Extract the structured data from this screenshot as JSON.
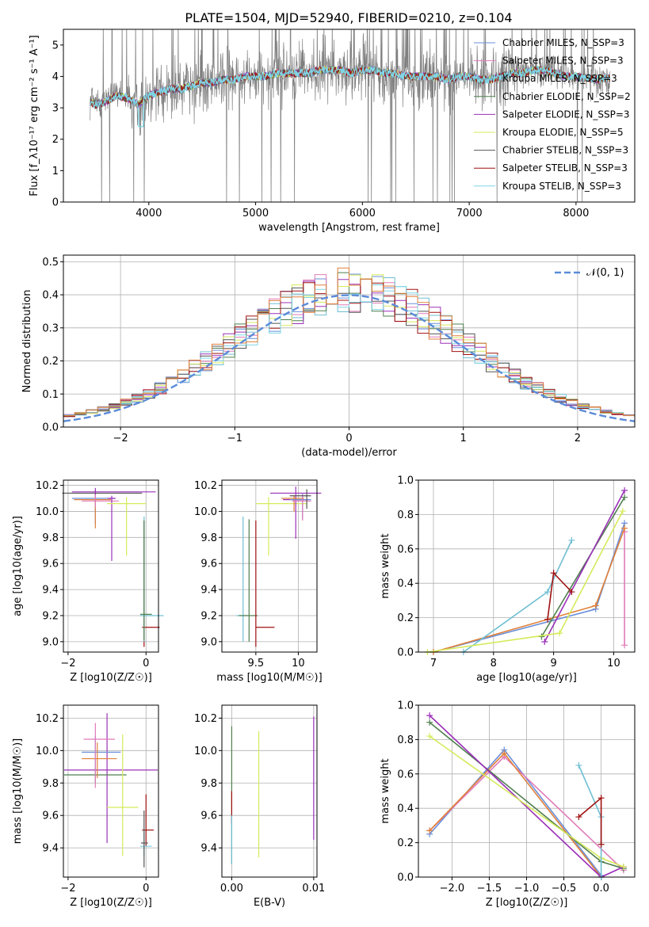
{
  "figure": {
    "title": "PLATE=1504, MJD=52940, FIBERID=0210, z=0.104",
    "colors": [
      "#6a8fd9",
      "#e07ab8",
      "#6fbfd3",
      "#4f7f4f",
      "#9b30b8",
      "#d6ea5b",
      "#555555",
      "#a01010",
      "#7fd6e6"
    ],
    "orange": "#e0803a"
  },
  "chart_data": [
    {
      "id": "spectrum",
      "type": "line",
      "xlabel": "wavelength [Angstrom, rest frame]",
      "ylabel": "Flux [f_λ 10^-17 erg cm^-2 s^-1 A^-1]",
      "xlim": [
        3200,
        8550
      ],
      "ylim": [
        0,
        5.5
      ],
      "xticks": [
        4000,
        5000,
        6000,
        7000,
        8000
      ],
      "yticks": [
        0,
        1,
        2,
        3,
        4,
        5
      ],
      "grid": false,
      "legend_position": "top-right",
      "series": [
        {
          "name": "Chabrier MILES, N_SSP=3",
          "color": "#6a8fd9"
        },
        {
          "name": "Salpeter MILES, N_SSP=3",
          "color": "#e07ab8"
        },
        {
          "name": "Kroupa MILES, N_SSP=3",
          "color": "#6fbfd3"
        },
        {
          "name": "Chabrier ELODIE, N_SSP=2",
          "color": "#4f7f4f"
        },
        {
          "name": "Salpeter ELODIE, N_SSP=3",
          "color": "#9b30b8"
        },
        {
          "name": "Kroupa ELODIE, N_SSP=5",
          "color": "#d6ea5b"
        },
        {
          "name": "Chabrier STELIB, N_SSP=3",
          "color": "#555555"
        },
        {
          "name": "Salpeter STELIB, N_SSP=3",
          "color": "#a01010"
        },
        {
          "name": "Kroupa STELIB, N_SSP=3",
          "color": "#7fd6e6"
        }
      ],
      "x": [
        3450,
        3500,
        3600,
        3700,
        3800,
        3900,
        4000,
        4100,
        4200,
        4300,
        4400,
        4500,
        4600,
        4700,
        4800,
        4900,
        5000,
        5100,
        5200,
        5300,
        5400,
        5500,
        5600,
        5700,
        5800,
        5900,
        6000,
        6100,
        6200,
        6300,
        6400,
        6500,
        6600,
        6700,
        6800,
        6900,
        7000,
        7100,
        7200,
        7300,
        7400,
        7500,
        7600,
        7700,
        7800,
        7900,
        8000,
        8100,
        8200,
        8300
      ],
      "model": [
        3.2,
        3.1,
        3.2,
        3.4,
        3.3,
        3.1,
        3.4,
        3.5,
        3.6,
        3.6,
        3.7,
        3.8,
        3.8,
        3.9,
        3.9,
        4.0,
        4.0,
        4.0,
        4.1,
        4.1,
        4.1,
        4.1,
        4.2,
        4.2,
        4.2,
        4.1,
        4.2,
        4.2,
        4.1,
        4.1,
        4.0,
        4.0,
        4.0,
        4.0,
        3.9,
        4.0,
        4.0,
        3.9,
        3.9,
        4.0,
        4.1,
        4.1,
        4.2,
        4.2,
        4.1,
        4.0,
        4.0,
        3.95,
        3.9,
        3.95
      ],
      "data_spread": 1.3
    },
    {
      "id": "residuals",
      "type": "line",
      "xlabel": "(data-model)/error",
      "ylabel": "Normed distribution",
      "xlim": [
        -2.5,
        2.5
      ],
      "ylim": [
        0,
        0.52
      ],
      "xticks": [
        -2,
        -1,
        0,
        1,
        2
      ],
      "yticks": [
        0.0,
        0.1,
        0.2,
        0.3,
        0.4,
        0.5
      ],
      "grid": true,
      "legend_position": "top-right",
      "legend": "𝒩(0, 1)",
      "bin_width": 0.1
    },
    {
      "id": "age-vs-z",
      "type": "scatter",
      "xlabel": "Z [log10(Z/Z☉)]",
      "ylabel": "age  [log10(age/yr)]",
      "xlim": [
        -2.12,
        0.32
      ],
      "ylim": [
        8.92,
        10.24
      ],
      "xticks": [
        -2,
        0
      ],
      "yticks": [
        9.0,
        9.2,
        9.4,
        9.6,
        9.8,
        10.0,
        10.2
      ],
      "grid": true,
      "points": [
        {
          "x": -1.3,
          "y": 10.14,
          "xerr": [
            0.85,
            1.2
          ],
          "yerr": [
            0.02,
            0.02
          ],
          "c": 6
        },
        {
          "x": -1.3,
          "y": 10.15,
          "xerr": [
            0.6,
            1.55
          ],
          "yerr": [
            0.03,
            0.03
          ],
          "c": 4
        },
        {
          "x": -1.3,
          "y": 10.1,
          "xerr": [
            0.6,
            0.5
          ],
          "yerr": [
            0.2,
            0.02
          ],
          "c": 0
        },
        {
          "x": -1.3,
          "y": 10.09,
          "xerr": [
            0.55,
            0.4
          ],
          "yerr": [
            0.22,
            0.02
          ],
          "c": 9
        },
        {
          "x": -1.3,
          "y": 10.08,
          "xerr": [
            0.35,
            0.6
          ],
          "yerr": [
            0.05,
            0.05
          ],
          "c": 1
        },
        {
          "x": -0.88,
          "y": 10.1,
          "xerr": [
            0.1,
            0.1
          ],
          "yerr": [
            0.48,
            0.02
          ],
          "c": 4
        },
        {
          "x": -0.5,
          "y": 10.06,
          "xerr": [
            0.5,
            0.5
          ],
          "yerr": [
            0.4,
            0.05
          ],
          "c": 5
        },
        {
          "x": -0.05,
          "y": 9.11,
          "xerr": [
            0.05,
            0.4
          ],
          "yerr": [
            0.15,
            0.82
          ],
          "c": 7
        },
        {
          "x": -0.05,
          "y": 9.2,
          "xerr": [
            0.1,
            0.5
          ],
          "yerr": [
            0.2,
            0.76
          ],
          "c": 2
        },
        {
          "x": -0.05,
          "y": 9.21,
          "xerr": [
            0.1,
            0.2
          ],
          "yerr": [
            0.2,
            0.72
          ],
          "c": 3
        }
      ]
    },
    {
      "id": "age-vs-mass",
      "type": "scatter",
      "xlabel": "mass [log10(M/M☉)]",
      "ylabel": "",
      "xlim": [
        9.1,
        10.22
      ],
      "ylim": [
        8.92,
        10.24
      ],
      "xticks": [
        9.5,
        10.0
      ],
      "yticks": [
        9.0,
        9.2,
        9.4,
        9.6,
        9.8,
        10.0,
        10.2
      ],
      "grid": true,
      "points": [
        {
          "x": 9.35,
          "y": 9.2,
          "xerr": [
            0.08,
            0.05
          ],
          "yerr": [
            0.2,
            0.76
          ],
          "c": 2
        },
        {
          "x": 9.42,
          "y": 9.2,
          "xerr": [
            0.12,
            0.1
          ],
          "yerr": [
            0.2,
            0.74
          ],
          "c": 3
        },
        {
          "x": 9.5,
          "y": 9.11,
          "xerr": [
            0.0,
            0.22
          ],
          "yerr": [
            0.15,
            0.82
          ],
          "c": 7
        },
        {
          "x": 9.65,
          "y": 10.06,
          "xerr": [
            0.15,
            0.45
          ],
          "yerr": [
            0.4,
            0.05
          ],
          "c": 5
        },
        {
          "x": 9.97,
          "y": 10.09,
          "xerr": [
            0.15,
            0.1
          ],
          "yerr": [
            0.3,
            0.02
          ],
          "c": 4
        },
        {
          "x": 9.97,
          "y": 10.14,
          "xerr": [
            0.3,
            0.3
          ],
          "yerr": [
            0.05,
            0.05
          ],
          "c": 4
        },
        {
          "x": 9.95,
          "y": 10.1,
          "xerr": [
            0.15,
            0.12
          ],
          "yerr": [
            0.1,
            0.02
          ],
          "c": 9
        },
        {
          "x": 10.05,
          "y": 10.09,
          "xerr": [
            0.15,
            0.1
          ],
          "yerr": [
            0.15,
            0.05
          ],
          "c": 0
        },
        {
          "x": 10.05,
          "y": 10.08,
          "xerr": [
            0.12,
            0.1
          ],
          "yerr": [
            0.15,
            0.05
          ],
          "c": 1
        },
        {
          "x": 10.1,
          "y": 10.12,
          "xerr": [
            0.2,
            0.05
          ],
          "yerr": [
            0.1,
            0.05
          ],
          "c": 6
        }
      ]
    },
    {
      "id": "weight-vs-age",
      "type": "line",
      "xlabel": "age  [log10(age/yr)]",
      "ylabel": "mass weight",
      "xlim": [
        6.75,
        10.35
      ],
      "ylim": [
        0,
        1.0
      ],
      "xticks": [
        7,
        8,
        9,
        10
      ],
      "yticks": [
        0.0,
        0.2,
        0.4,
        0.6,
        0.8,
        1.0
      ],
      "grid": true,
      "series": [
        {
          "c": 0,
          "x": [
            7.0,
            9.7,
            10.18
          ],
          "y": [
            0.0,
            0.25,
            0.75
          ]
        },
        {
          "c": 1,
          "x": [
            10.18,
            10.18
          ],
          "y": [
            0.04,
            0.7
          ]
        },
        {
          "c": 9,
          "x": [
            7.0,
            9.7,
            10.18
          ],
          "y": [
            0.0,
            0.27,
            0.72
          ]
        },
        {
          "c": 2,
          "x": [
            7.5,
            8.9,
            9.3
          ],
          "y": [
            0.0,
            0.35,
            0.65
          ]
        },
        {
          "c": 3,
          "x": [
            8.8,
            10.18
          ],
          "y": [
            0.09,
            0.9
          ]
        },
        {
          "c": 4,
          "x": [
            8.85,
            10.18
          ],
          "y": [
            0.06,
            0.94
          ]
        },
        {
          "c": 5,
          "x": [
            6.9,
            9.1,
            10.15
          ],
          "y": [
            0.0,
            0.11,
            0.82
          ]
        },
        {
          "c": 7,
          "x": [
            8.9,
            9.0,
            9.3
          ],
          "y": [
            0.19,
            0.46,
            0.35
          ]
        }
      ]
    },
    {
      "id": "mass-vs-z",
      "type": "scatter",
      "xlabel": "Z [log10(Z/Z☉)]",
      "ylabel": "mass [log10(M/M☉)]",
      "xlim": [
        -2.12,
        0.32
      ],
      "ylim": [
        9.22,
        10.28
      ],
      "xticks": [
        -2,
        0
      ],
      "yticks": [
        9.4,
        9.6,
        9.8,
        10.0,
        10.2
      ],
      "grid": true,
      "points": [
        {
          "x": -1.0,
          "y": 9.88,
          "xerr": [
            1.1,
            1.3
          ],
          "yerr": [
            0.45,
            0.35
          ],
          "c": 4
        },
        {
          "x": -1.3,
          "y": 9.85,
          "xerr": [
            0.8,
            0.8
          ],
          "yerr": [
            0.05,
            0.05
          ],
          "c": 3
        },
        {
          "x": -1.3,
          "y": 9.99,
          "xerr": [
            0.35,
            0.65
          ],
          "yerr": [
            0.1,
            0.1
          ],
          "c": 0
        },
        {
          "x": -1.25,
          "y": 9.95,
          "xerr": [
            0.4,
            0.5
          ],
          "yerr": [
            0.12,
            0.1
          ],
          "c": 9
        },
        {
          "x": -1.3,
          "y": 10.07,
          "xerr": [
            0.3,
            0.5
          ],
          "yerr": [
            0.3,
            0.1
          ],
          "c": 1
        },
        {
          "x": -0.6,
          "y": 9.65,
          "xerr": [
            0.4,
            0.4
          ],
          "yerr": [
            0.3,
            0.45
          ],
          "c": 5
        },
        {
          "x": 0.0,
          "y": 9.51,
          "xerr": [
            0.1,
            0.2
          ],
          "yerr": [
            0.1,
            0.22
          ],
          "c": 7
        },
        {
          "x": -0.05,
          "y": 9.41,
          "xerr": [
            0.1,
            0.2
          ],
          "yerr": [
            0.06,
            0.1
          ],
          "c": 8
        },
        {
          "x": -0.05,
          "y": 9.43,
          "xerr": [
            0.08,
            0.1
          ],
          "yerr": [
            0.15,
            0.2
          ],
          "c": 6
        }
      ]
    },
    {
      "id": "mass-vs-ebv",
      "type": "scatter",
      "xlabel": "E(B-V)",
      "ylabel": "",
      "xlim": [
        -0.0012,
        0.0104
      ],
      "ylim": [
        9.22,
        10.28
      ],
      "xticks": [
        0.0,
        0.01
      ],
      "xticklabels": [
        "0.00",
        "0.01"
      ],
      "yticks": [
        9.4,
        9.6,
        9.8,
        10.0,
        10.2
      ],
      "grid": true,
      "points": [
        {
          "x": 0.0,
          "y": 9.7,
          "xerr": [
            0,
            0
          ],
          "yerr": [
            0.4,
            0.45
          ],
          "c": 3
        },
        {
          "x": 0.0,
          "y": 9.65,
          "xerr": [
            0,
            0
          ],
          "yerr": [
            0.1,
            0.1
          ],
          "c": 7
        },
        {
          "x": 0.0,
          "y": 9.45,
          "xerr": [
            0,
            0
          ],
          "yerr": [
            0.15,
            0.15
          ],
          "c": 2
        },
        {
          "x": 0.0033,
          "y": 9.72,
          "xerr": [
            0,
            0
          ],
          "yerr": [
            0.38,
            0.4
          ],
          "c": 5
        },
        {
          "x": 0.01,
          "y": 9.83,
          "xerr": [
            0,
            0
          ],
          "yerr": [
            0.38,
            0.38
          ],
          "c": 4
        }
      ]
    },
    {
      "id": "weight-vs-z",
      "type": "line",
      "xlabel": "Z [log10(Z/Z☉)]",
      "ylabel": "mass weight",
      "xlim": [
        -2.45,
        0.45
      ],
      "ylim": [
        0,
        1.0
      ],
      "xticks": [
        -2.0,
        -1.5,
        -1.0,
        -0.5,
        0.0
      ],
      "xticklabels": [
        "−2.0",
        "−1.5",
        "−1.0",
        "−0.5",
        "0.0"
      ],
      "yticks": [
        0.0,
        0.2,
        0.4,
        0.6,
        0.8,
        1.0
      ],
      "grid": true,
      "series": [
        {
          "c": 0,
          "x": [
            -2.3,
            -1.3,
            0.0
          ],
          "y": [
            0.25,
            0.74,
            0.01
          ]
        },
        {
          "c": 1,
          "x": [
            -2.3,
            -1.3,
            0.3
          ],
          "y": [
            0.27,
            0.7,
            0.04
          ]
        },
        {
          "c": 9,
          "x": [
            -2.3,
            -1.3,
            0.0
          ],
          "y": [
            0.27,
            0.72,
            0.0
          ]
        },
        {
          "c": 3,
          "x": [
            -2.3,
            0.0,
            0.3
          ],
          "y": [
            0.9,
            0.09,
            0.05
          ]
        },
        {
          "c": 4,
          "x": [
            -2.3,
            0.0,
            0.3
          ],
          "y": [
            0.94,
            0.0,
            0.06
          ]
        },
        {
          "c": 5,
          "x": [
            -2.3,
            0.0,
            0.3
          ],
          "y": [
            0.82,
            0.11,
            0.06
          ]
        },
        {
          "c": 2,
          "x": [
            -0.3,
            0.0,
            0.0
          ],
          "y": [
            0.65,
            0.35,
            0.0
          ]
        },
        {
          "c": 7,
          "x": [
            -0.3,
            0.0,
            0.0
          ],
          "y": [
            0.35,
            0.46,
            0.19
          ]
        }
      ]
    }
  ]
}
